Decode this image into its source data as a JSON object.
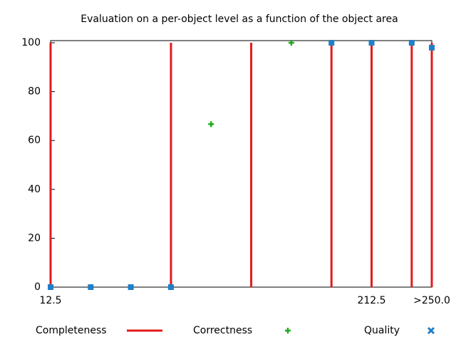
{
  "chart_data": {
    "type": "mixed",
    "title": "Evaluation on a per-object level as a function of the object area",
    "x": [
      12.5,
      37.5,
      62.5,
      87.5,
      112.5,
      137.5,
      162.5,
      187.5,
      212.5,
      237.5,
      250
    ],
    "xlim": [
      12.5,
      250
    ],
    "xticks": [
      12.5,
      212.5,
      {
        "value": 250,
        "label": ">250.0"
      }
    ],
    "ylim": [
      0,
      100
    ],
    "yticks": [
      0,
      20,
      40,
      60,
      80,
      100
    ],
    "grid": false,
    "legend": "bottom",
    "series": [
      {
        "name": "Completeness",
        "color": "#e31a1c",
        "style": "impulses",
        "values": [
          100,
          null,
          null,
          100,
          null,
          100,
          null,
          100,
          100,
          100,
          100
        ]
      },
      {
        "name": "Correctness",
        "color": "#1aab1a",
        "style": "plus",
        "values": [
          null,
          null,
          null,
          null,
          66.7,
          null,
          100,
          null,
          null,
          null,
          null
        ]
      },
      {
        "name": "Quality",
        "color": "#1f7fc8",
        "style": "square",
        "values": [
          0,
          0,
          0,
          0,
          null,
          null,
          null,
          100,
          100,
          100,
          98
        ]
      }
    ]
  }
}
